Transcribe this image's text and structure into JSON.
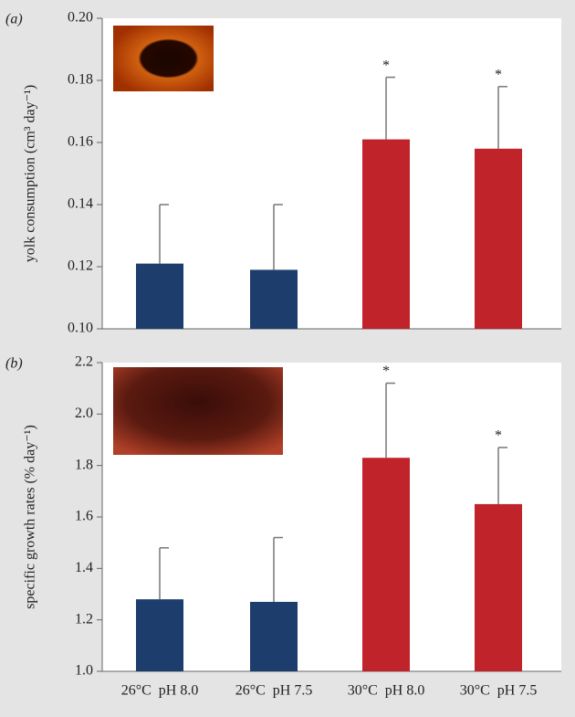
{
  "chart_data": [
    {
      "type": "bar",
      "panel_label": "(a)",
      "y_label": "yolk consumption (cm³ day⁻¹)",
      "values": [
        0.121,
        0.119,
        0.161,
        0.158
      ],
      "errors": [
        0.019,
        0.021,
        0.02,
        0.02
      ],
      "colors": [
        "#1d3e6c",
        "#1d3e6c",
        "#c1232b",
        "#c1232b"
      ],
      "markers": [
        null,
        null,
        "*",
        "*"
      ],
      "ylim": [
        0.1,
        0.2
      ],
      "yticks": [
        {
          "value": 0.1,
          "label": "0.10"
        },
        0.12,
        0.14,
        0.16,
        0.18,
        {
          "value": 0.2,
          "label": "0.20"
        }
      ]
    },
    {
      "type": "bar",
      "panel_label": "(b)",
      "y_label": "specific growth rates (% day⁻¹)",
      "categories": [
        "26°C  pH 8.0",
        "26°C  pH 7.5",
        "30°C  pH 8.0",
        "30°C  pH 7.5"
      ],
      "values": [
        1.28,
        1.27,
        1.83,
        1.65
      ],
      "errors": [
        0.2,
        0.25,
        0.29,
        0.22
      ],
      "colors": [
        "#1d3e6c",
        "#1d3e6c",
        "#c1232b",
        "#c1232b"
      ],
      "markers": [
        null,
        null,
        "*",
        "*"
      ],
      "ylim": [
        1.0,
        2.2
      ],
      "yticks": [
        {
          "value": 1.0,
          "label": "1.0"
        },
        1.2,
        1.4,
        1.6,
        1.8,
        {
          "value": 2.0,
          "label": "2.0"
        },
        2.2
      ]
    }
  ]
}
